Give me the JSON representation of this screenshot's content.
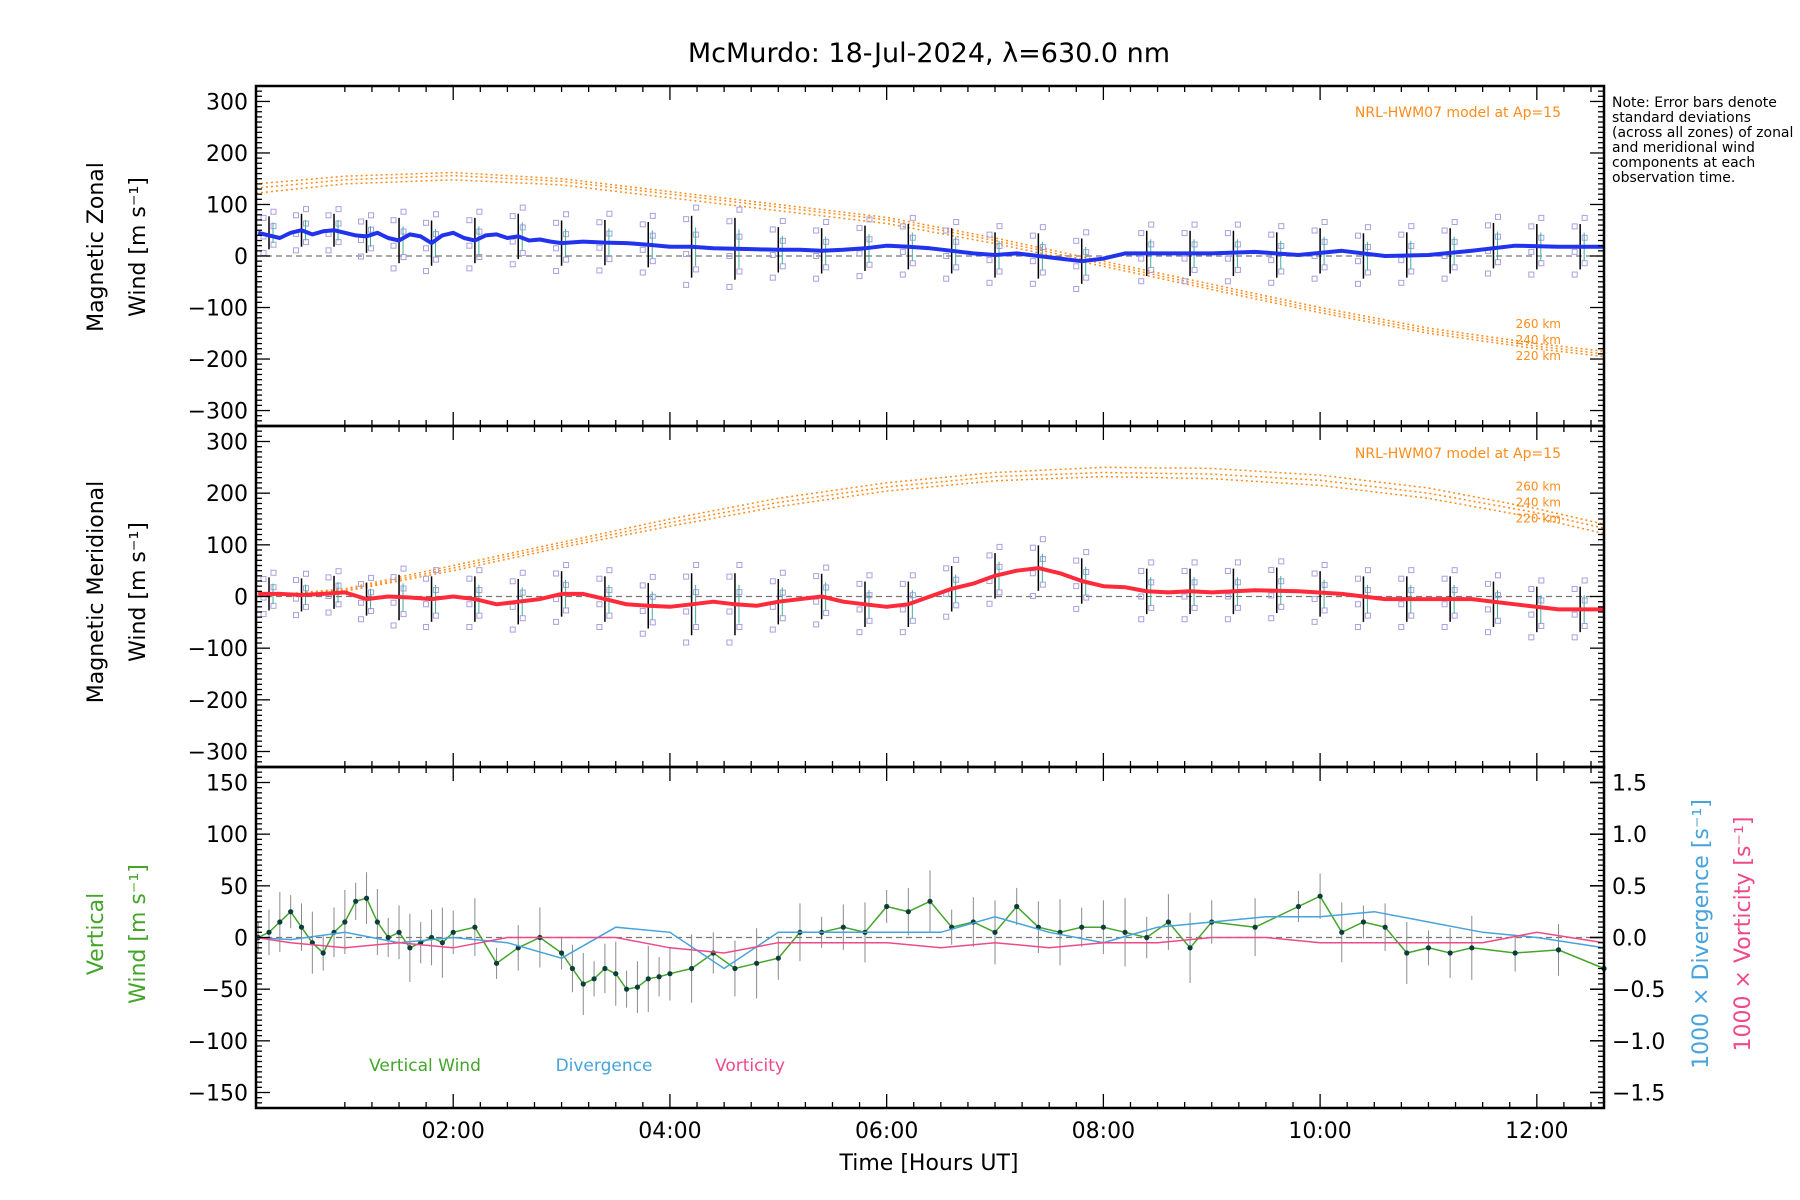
{
  "chart_data": [
    {
      "type": "line",
      "title": "McMurdo: 18-Jul-2024, λ=630.0 nm",
      "ylabel_line1": "Magnetic Zonal",
      "ylabel_line2": "Wind [m s⁻¹]",
      "xlim": [
        0.18,
        12.62
      ],
      "ylim": [
        -330,
        330
      ],
      "yticks": [
        -300,
        -200,
        -100,
        0,
        100,
        200,
        300
      ],
      "model_label": "NRL-HWM07 model at Ap=15",
      "model_altitudes": [
        "260 km",
        "240 km",
        "220 km"
      ],
      "model_series": [
        {
          "name": "260 km",
          "x": [
            0.18,
            1.0,
            2.0,
            3.0,
            4.0,
            5.0,
            6.0,
            7.0,
            8.0,
            9.0,
            10.0,
            11.0,
            12.0,
            12.62
          ],
          "y": [
            140,
            155,
            162,
            150,
            125,
            100,
            75,
            35,
            -10,
            -55,
            -100,
            -140,
            -170,
            -185
          ]
        },
        {
          "name": "240 km",
          "x": [
            0.18,
            1.0,
            2.0,
            3.0,
            4.0,
            5.0,
            6.0,
            7.0,
            8.0,
            9.0,
            10.0,
            11.0,
            12.0,
            12.62
          ],
          "y": [
            132,
            148,
            156,
            145,
            120,
            95,
            70,
            30,
            -15,
            -60,
            -105,
            -145,
            -175,
            -190
          ]
        },
        {
          "name": "220 km",
          "x": [
            0.18,
            1.0,
            2.0,
            3.0,
            4.0,
            5.0,
            6.0,
            7.0,
            8.0,
            9.0,
            10.0,
            11.0,
            12.0,
            12.62
          ],
          "y": [
            122,
            140,
            148,
            138,
            113,
            88,
            63,
            24,
            -20,
            -65,
            -110,
            -150,
            -180,
            -195
          ]
        }
      ],
      "series": [
        {
          "name": "mean zonal wind",
          "color": "#2233ee",
          "x": [
            0.2,
            0.3,
            0.4,
            0.5,
            0.6,
            0.7,
            0.8,
            0.9,
            1.0,
            1.1,
            1.2,
            1.3,
            1.4,
            1.5,
            1.6,
            1.7,
            1.8,
            1.9,
            2.0,
            2.1,
            2.2,
            2.3,
            2.4,
            2.5,
            2.6,
            2.7,
            2.8,
            2.9,
            3.0,
            3.2,
            3.4,
            3.6,
            3.8,
            4.0,
            4.2,
            4.4,
            4.6,
            4.8,
            5.0,
            5.2,
            5.4,
            5.6,
            5.8,
            6.0,
            6.2,
            6.4,
            6.6,
            6.8,
            7.0,
            7.2,
            7.4,
            7.6,
            7.8,
            8.0,
            8.2,
            8.4,
            8.6,
            8.8,
            9.0,
            9.4,
            9.8,
            10.2,
            10.6,
            11.0,
            11.4,
            11.8,
            12.2,
            12.62
          ],
          "y": [
            45,
            40,
            35,
            45,
            50,
            42,
            48,
            50,
            45,
            40,
            38,
            45,
            35,
            30,
            42,
            38,
            25,
            40,
            45,
            35,
            30,
            40,
            42,
            35,
            38,
            30,
            32,
            28,
            25,
            28,
            26,
            25,
            22,
            18,
            18,
            15,
            14,
            13,
            12,
            12,
            10,
            12,
            15,
            20,
            18,
            15,
            10,
            5,
            2,
            5,
            0,
            -5,
            -10,
            -5,
            5,
            5,
            5,
            5,
            5,
            8,
            2,
            10,
            0,
            2,
            10,
            20,
            18,
            18
          ]
        },
        {
          "name": "vertical error bars",
          "color": "#000000",
          "x": [
            0.3,
            0.6,
            0.9,
            1.2,
            1.5,
            1.8,
            2.2,
            2.6,
            3.0,
            3.4,
            3.8,
            4.2,
            4.6,
            5.0,
            5.4,
            5.8,
            6.2,
            6.6,
            7.0,
            7.4,
            7.8,
            8.4,
            8.8,
            9.2,
            9.6,
            10.0,
            10.4,
            10.8,
            11.2,
            11.6,
            12.0,
            12.4
          ],
          "y": [
            45,
            50,
            50,
            38,
            30,
            25,
            30,
            38,
            25,
            26,
            22,
            18,
            14,
            12,
            10,
            15,
            18,
            10,
            2,
            0,
            -10,
            5,
            5,
            5,
            2,
            10,
            0,
            2,
            10,
            20,
            18,
            18
          ]
        }
      ]
    },
    {
      "type": "line",
      "ylabel_line1": "Magnetic Meridional",
      "ylabel_line2": "Wind [m s⁻¹]",
      "xlim": [
        0.18,
        12.62
      ],
      "ylim": [
        -330,
        330
      ],
      "yticks": [
        -300,
        -200,
        -100,
        0,
        100,
        200,
        300
      ],
      "model_label": "NRL-HWM07 model at Ap=15",
      "model_altitudes": [
        "260 km",
        "240 km",
        "220 km"
      ],
      "model_series": [
        {
          "name": "260 km",
          "x": [
            0.18,
            1.0,
            2.0,
            3.0,
            4.0,
            5.0,
            6.0,
            7.0,
            8.0,
            9.0,
            10.0,
            11.0,
            12.0,
            12.62
          ],
          "y": [
            0,
            15,
            60,
            105,
            150,
            190,
            220,
            240,
            250,
            248,
            235,
            210,
            170,
            140
          ]
        },
        {
          "name": "240 km",
          "x": [
            0.18,
            1.0,
            2.0,
            3.0,
            4.0,
            5.0,
            6.0,
            7.0,
            8.0,
            9.0,
            10.0,
            11.0,
            12.0,
            12.62
          ],
          "y": [
            0,
            12,
            55,
            100,
            143,
            182,
            212,
            232,
            240,
            237,
            225,
            200,
            162,
            132
          ]
        },
        {
          "name": "220 km",
          "x": [
            0.18,
            1.0,
            2.0,
            3.0,
            4.0,
            5.0,
            6.0,
            7.0,
            8.0,
            9.0,
            10.0,
            11.0,
            12.0,
            12.62
          ],
          "y": [
            0,
            10,
            50,
            95,
            136,
            174,
            204,
            224,
            232,
            228,
            215,
            190,
            152,
            122
          ]
        }
      ],
      "series": [
        {
          "name": "mean meridional wind",
          "color": "#ff2a3a",
          "x": [
            0.2,
            0.4,
            0.6,
            0.8,
            1.0,
            1.2,
            1.4,
            1.6,
            1.8,
            2.0,
            2.2,
            2.4,
            2.6,
            2.8,
            3.0,
            3.2,
            3.4,
            3.6,
            3.8,
            4.0,
            4.2,
            4.4,
            4.6,
            4.8,
            5.0,
            5.2,
            5.4,
            5.6,
            5.8,
            6.0,
            6.2,
            6.4,
            6.6,
            6.8,
            7.0,
            7.2,
            7.4,
            7.6,
            7.8,
            8.0,
            8.2,
            8.4,
            8.6,
            8.8,
            9.0,
            9.4,
            9.8,
            10.2,
            10.6,
            11.0,
            11.4,
            11.8,
            12.2,
            12.62
          ],
          "y": [
            5,
            5,
            3,
            5,
            8,
            -5,
            0,
            -2,
            -5,
            0,
            -5,
            -15,
            -10,
            -5,
            5,
            5,
            -5,
            -15,
            -18,
            -20,
            -15,
            -10,
            -15,
            -18,
            -10,
            -5,
            0,
            -10,
            -15,
            -20,
            -15,
            0,
            15,
            25,
            40,
            50,
            55,
            45,
            30,
            20,
            18,
            10,
            8,
            10,
            8,
            12,
            10,
            5,
            -5,
            -5,
            -5,
            -15,
            -25,
            -25
          ]
        },
        {
          "name": "vertical error bars",
          "color": "#000000",
          "x": [
            0.3,
            0.6,
            0.9,
            1.2,
            1.5,
            1.8,
            2.2,
            2.6,
            3.0,
            3.4,
            3.8,
            4.2,
            4.6,
            5.0,
            5.4,
            5.8,
            6.2,
            6.6,
            7.0,
            7.4,
            7.8,
            8.4,
            8.8,
            9.2,
            9.6,
            10.0,
            10.4,
            10.8,
            11.2,
            11.6,
            12.0,
            12.4
          ],
          "y": [
            5,
            3,
            8,
            -5,
            -2,
            -5,
            -5,
            -10,
            5,
            -5,
            -18,
            -15,
            -15,
            -10,
            0,
            -15,
            -15,
            15,
            40,
            55,
            30,
            10,
            10,
            10,
            12,
            5,
            -5,
            -5,
            -5,
            -15,
            -25,
            -25
          ]
        }
      ]
    },
    {
      "type": "line",
      "ylabel_line1": "Vertical",
      "ylabel_line2": "Wind [m s⁻¹]",
      "y2label_a": "1000 × Divergence [s⁻¹]",
      "y2label_b": "1000 × Vorticity [s⁻¹]",
      "xlabel": "Time [Hours UT]",
      "xlim": [
        0.18,
        12.62
      ],
      "ylim": [
        -165,
        165
      ],
      "yticks": [
        -150,
        -100,
        -50,
        0,
        50,
        100,
        150
      ],
      "y2lim": [
        -1.65,
        1.65
      ],
      "y2ticks": [
        -1.5,
        -1.0,
        -0.5,
        0.0,
        0.5,
        1.0,
        1.5
      ],
      "xticks": [
        "02:00",
        "04:00",
        "06:00",
        "08:00",
        "10:00",
        "12:00"
      ],
      "xtick_values": [
        2,
        4,
        6,
        8,
        10,
        12
      ],
      "legend": [
        "Vertical Wind",
        "Divergence",
        "Vorticity"
      ],
      "series": [
        {
          "name": "Vertical Wind",
          "color": "#44a52a",
          "axis": "left",
          "x": [
            0.2,
            0.3,
            0.4,
            0.5,
            0.6,
            0.7,
            0.8,
            0.9,
            1.0,
            1.1,
            1.2,
            1.3,
            1.4,
            1.5,
            1.6,
            1.7,
            1.8,
            1.9,
            2.0,
            2.2,
            2.4,
            2.6,
            2.8,
            3.0,
            3.1,
            3.2,
            3.3,
            3.4,
            3.5,
            3.6,
            3.7,
            3.8,
            3.9,
            4.0,
            4.2,
            4.4,
            4.6,
            4.8,
            5.0,
            5.2,
            5.4,
            5.6,
            5.8,
            6.0,
            6.2,
            6.4,
            6.6,
            6.8,
            7.0,
            7.2,
            7.4,
            7.6,
            7.8,
            8.0,
            8.2,
            8.4,
            8.6,
            8.8,
            9.0,
            9.4,
            9.8,
            10.0,
            10.2,
            10.4,
            10.6,
            10.8,
            11.0,
            11.2,
            11.4,
            11.8,
            12.2,
            12.62
          ],
          "y": [
            0,
            5,
            15,
            25,
            10,
            -5,
            -15,
            5,
            15,
            35,
            38,
            15,
            0,
            5,
            -10,
            -5,
            0,
            -5,
            5,
            10,
            -25,
            -10,
            0,
            -15,
            -30,
            -45,
            -40,
            -30,
            -35,
            -50,
            -48,
            -40,
            -38,
            -35,
            -30,
            -15,
            -30,
            -25,
            -20,
            5,
            5,
            10,
            5,
            30,
            25,
            35,
            10,
            15,
            5,
            30,
            10,
            5,
            10,
            10,
            5,
            0,
            15,
            -10,
            15,
            10,
            30,
            40,
            5,
            15,
            10,
            -15,
            -10,
            -15,
            -10,
            -15,
            -12,
            -30
          ]
        },
        {
          "name": "Divergence",
          "color": "#46a3dc",
          "axis": "right",
          "x": [
            0.18,
            0.5,
            1.0,
            1.5,
            2.0,
            2.5,
            3.0,
            3.5,
            4.0,
            4.5,
            5.0,
            5.5,
            6.0,
            6.5,
            7.0,
            7.5,
            8.0,
            8.5,
            9.0,
            9.5,
            10.0,
            10.5,
            11.0,
            11.5,
            12.0,
            12.62
          ],
          "y": [
            0.0,
            -0.02,
            0.05,
            -0.05,
            0.0,
            -0.05,
            -0.2,
            0.1,
            0.05,
            -0.3,
            0.05,
            0.05,
            0.05,
            0.05,
            0.2,
            0.05,
            -0.05,
            0.1,
            0.15,
            0.2,
            0.2,
            0.25,
            0.15,
            0.05,
            0.0,
            -0.1
          ]
        },
        {
          "name": "Vorticity",
          "color": "#ee4a8a",
          "axis": "right",
          "x": [
            0.18,
            0.5,
            1.0,
            1.5,
            2.0,
            2.5,
            3.0,
            3.5,
            4.0,
            4.5,
            5.0,
            5.5,
            6.0,
            6.5,
            7.0,
            7.5,
            8.0,
            8.5,
            9.0,
            9.5,
            10.0,
            10.5,
            11.0,
            11.5,
            12.0,
            12.62
          ],
          "y": [
            0.0,
            -0.05,
            -0.1,
            -0.05,
            -0.1,
            0.0,
            0.0,
            0.0,
            -0.1,
            -0.15,
            -0.05,
            -0.05,
            -0.05,
            -0.1,
            -0.05,
            -0.1,
            -0.05,
            -0.05,
            0.0,
            0.0,
            -0.05,
            -0.05,
            -0.05,
            -0.05,
            0.05,
            -0.05
          ]
        }
      ]
    }
  ],
  "note": "Note: Error bars denote standard deviations (across all zones) of zonal and meridional wind components at each observation time.",
  "colors": {
    "zonal": "#2233ee",
    "meridional": "#ff2a3a",
    "model": "#ff8c1a",
    "scatter": "#a8a0e0",
    "vertical": "#44a52a",
    "divergence": "#46a3dc",
    "vorticity": "#ee4a8a"
  }
}
